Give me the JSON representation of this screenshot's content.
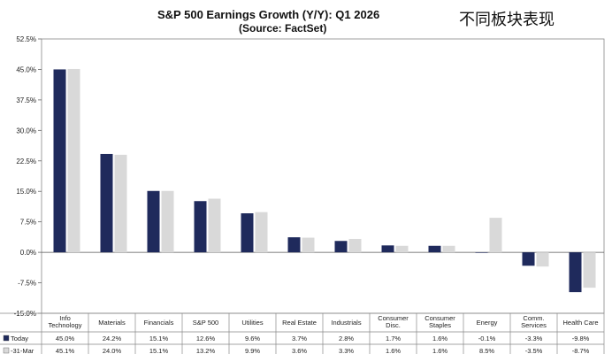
{
  "header": {
    "title": "S&P 500 Earnings Growth (Y/Y): Q1 2026",
    "subtitle": "(Source: FactSet)",
    "annotation": "不同板块表现"
  },
  "chart_data": {
    "type": "bar",
    "title": "S&P 500 Earnings Growth (Y/Y): Q1 2026",
    "subtitle": "(Source: FactSet)",
    "xlabel": "",
    "ylabel": "",
    "ylim": [
      -15.0,
      52.5
    ],
    "yticks": [
      "52.5%",
      "45.0%",
      "37.5%",
      "30.0%",
      "22.5%",
      "15.0%",
      "7.5%",
      "0.0%",
      "-7.5%",
      "-15.0%"
    ],
    "ytick_values": [
      52.5,
      45.0,
      37.5,
      30.0,
      22.5,
      15.0,
      7.5,
      0.0,
      -7.5,
      -15.0
    ],
    "grid": false,
    "categories": [
      [
        "Info",
        "Technology"
      ],
      [
        "Materials"
      ],
      [
        "Financials"
      ],
      [
        "S&P 500"
      ],
      [
        "Utilities"
      ],
      [
        "Real Estate"
      ],
      [
        "Industrials"
      ],
      [
        "Consumer",
        "Disc."
      ],
      [
        "Consumer",
        "Staples"
      ],
      [
        "Energy"
      ],
      [
        "Comm.",
        "Services"
      ],
      [
        "Health Care"
      ]
    ],
    "series": [
      {
        "name": "Today",
        "color": "#1f2a5c",
        "values": [
          45.0,
          24.2,
          15.1,
          12.6,
          9.6,
          3.7,
          2.8,
          1.7,
          1.6,
          -0.1,
          -3.3,
          -9.8
        ],
        "labels": [
          "45.0%",
          "24.2%",
          "15.1%",
          "12.6%",
          "9.6%",
          "3.7%",
          "2.8%",
          "1.7%",
          "1.6%",
          "-0.1%",
          "-3.3%",
          "-9.8%"
        ]
      },
      {
        "name": "31-Mar",
        "color": "#d9d9d9",
        "values": [
          45.1,
          24.0,
          15.1,
          13.2,
          9.9,
          3.6,
          3.3,
          1.6,
          1.6,
          8.5,
          -3.5,
          -8.7
        ],
        "labels": [
          "45.1%",
          "24.0%",
          "15.1%",
          "13.2%",
          "9.9%",
          "3.6%",
          "3.3%",
          "1.6%",
          "1.6%",
          "8.5%",
          "-3.5%",
          "-8.7%"
        ]
      }
    ],
    "table_legend": [
      {
        "marker": "■",
        "label": "Today",
        "color": "#1f2a5c"
      },
      {
        "marker": "■",
        "label": "31-Mar",
        "color": "#d9d9d9"
      }
    ]
  }
}
